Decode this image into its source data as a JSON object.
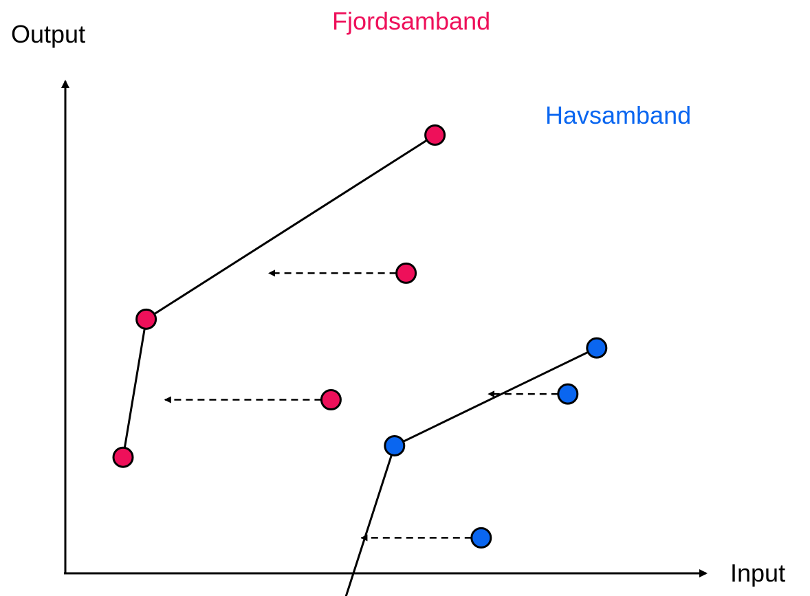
{
  "axes": {
    "x_label": "Input",
    "y_label": "Output"
  },
  "groups": [
    {
      "name": "Fjordsamband",
      "color": "#ee105a",
      "frontier": [
        [
          10,
          20
        ],
        [
          14,
          44
        ],
        [
          64,
          76
        ]
      ],
      "inefficient": [
        {
          "unit": [
            46,
            30
          ],
          "target": [
            17,
            30
          ]
        },
        {
          "unit": [
            59,
            52
          ],
          "target": [
            35,
            52
          ]
        }
      ]
    },
    {
      "name": "Havsamband",
      "color": "#0a66f0",
      "frontier": [
        [
          48,
          -6
        ],
        [
          57,
          22
        ],
        [
          92,
          39
        ]
      ],
      "inefficient": [
        {
          "unit": [
            72,
            6
          ],
          "target": [
            51,
            6
          ]
        },
        {
          "unit": [
            87,
            31
          ],
          "target": [
            73,
            31
          ]
        }
      ]
    }
  ]
}
